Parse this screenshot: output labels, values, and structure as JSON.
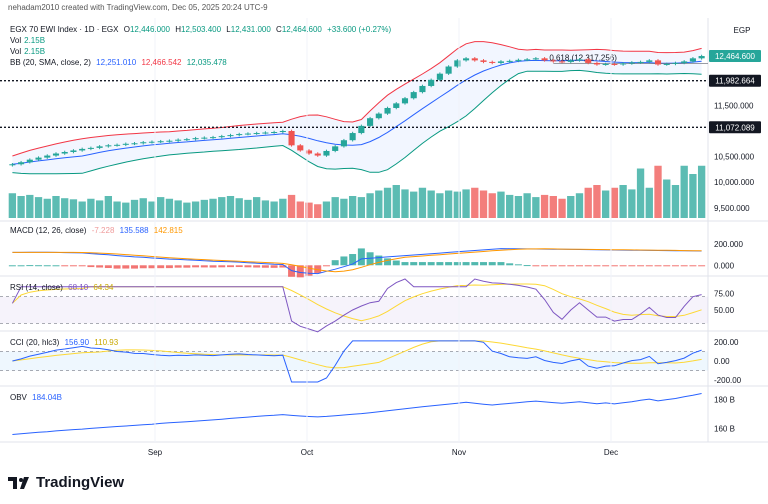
{
  "header": {
    "attribution": "nehadam2010 created with TradingView.com, Dec 05, 2025 20:24 UTC-9"
  },
  "currency": "EGP",
  "symbol": {
    "name": "EGX 70 EWI Index · 1D · EGX",
    "open_label": "O",
    "open": "12,446.000",
    "high_label": "H",
    "high": "12,503.400",
    "low_label": "L",
    "low": "12,431.000",
    "close_label": "C",
    "close": "12,464.600",
    "change": "+33.600 (+0.27%)"
  },
  "vol_lines": [
    {
      "label": "Vol",
      "value": "2.15B"
    },
    {
      "label": "Vol",
      "value": "2.15B"
    }
  ],
  "bb": {
    "label": "BB (20, SMA, close, 2)",
    "basis": "12,251.010",
    "upper": "12,466.542",
    "lower": "12,035.478"
  },
  "macd": {
    "label": "MACD (12, 26, close)",
    "hist": "-7.228",
    "macd": "135.588",
    "signal": "142.815"
  },
  "rsi": {
    "label": "RSI (14, close)",
    "rsi": "68.10",
    "ma": "64.34"
  },
  "cci": {
    "label": "CCI (20, hlc3)",
    "cci": "156.90",
    "ma": "110.93"
  },
  "obv": {
    "label": "OBV",
    "value": "184.04B"
  },
  "price_axis": {
    "ticks": [
      "11,500.000",
      "10,500.000",
      "10,000.000",
      "9,500.000"
    ],
    "current": "12,464.600",
    "level1": "11,982.664",
    "level2": "11,072.089",
    "fib": "0.618 (12,317.256)"
  },
  "macd_axis": [
    "200.000",
    "0.000"
  ],
  "rsi_axis": [
    "75.00",
    "50.00"
  ],
  "cci_axis": [
    "200.00",
    "0.00",
    "-200.00"
  ],
  "obv_axis": [
    "180 B",
    "160 B"
  ],
  "time_axis": [
    "Sep",
    "Oct",
    "Nov",
    "Dec"
  ],
  "footer": {
    "brand": "TradingView"
  },
  "colors": {
    "up": "#26a69a",
    "down": "#ef5350",
    "bb_basis": "#2962ff",
    "bb_upper": "#f23645",
    "bb_lower": "#089981",
    "macd": "#2962ff",
    "signal": "#ff9800",
    "rsi": "#7e57c2",
    "rsi_ma": "#fdd835",
    "cci": "#2962ff",
    "cci_ma": "#fdd835",
    "obv": "#2962ff"
  },
  "chart_data": {
    "type": "candlestick",
    "x_labels": [
      "Sep",
      "Oct",
      "Nov",
      "Dec"
    ],
    "close": [
      10350,
      10390,
      10440,
      10480,
      10520,
      10560,
      10590,
      10620,
      10650,
      10670,
      10700,
      10720,
      10730,
      10750,
      10760,
      10780,
      10790,
      10800,
      10810,
      10830,
      10840,
      10860,
      10870,
      10880,
      10900,
      10920,
      10940,
      10950,
      10960,
      10970,
      10980,
      11000,
      10720,
      10620,
      10560,
      10520,
      10610,
      10700,
      10820,
      10960,
      11100,
      11250,
      11340,
      11450,
      11540,
      11640,
      11760,
      11880,
      12000,
      12120,
      12260,
      12380,
      12420,
      12380,
      12350,
      12330,
      12360,
      12370,
      12390,
      12400,
      12420,
      12380,
      12360,
      12350,
      12380,
      12400,
      12330,
      12300,
      12310,
      12300,
      12320,
      12340,
      12350,
      12380,
      12300,
      12310,
      12330,
      12360,
      12420,
      12465
    ],
    "volume_rel": [
      0.45,
      0.4,
      0.42,
      0.38,
      0.35,
      0.4,
      0.36,
      0.34,
      0.3,
      0.35,
      0.32,
      0.4,
      0.3,
      0.28,
      0.33,
      0.36,
      0.3,
      0.38,
      0.35,
      0.32,
      0.28,
      0.3,
      0.33,
      0.35,
      0.38,
      0.4,
      0.36,
      0.33,
      0.38,
      0.32,
      0.3,
      0.35,
      0.42,
      0.3,
      0.28,
      0.25,
      0.3,
      0.38,
      0.35,
      0.4,
      0.38,
      0.45,
      0.5,
      0.55,
      0.6,
      0.52,
      0.48,
      0.55,
      0.5,
      0.45,
      0.5,
      0.48,
      0.52,
      0.55,
      0.5,
      0.45,
      0.48,
      0.42,
      0.4,
      0.45,
      0.38,
      0.42,
      0.4,
      0.35,
      0.4,
      0.45,
      0.55,
      0.6,
      0.5,
      0.55,
      0.6,
      0.52,
      0.9,
      0.55,
      0.95,
      0.7,
      0.6,
      0.95,
      0.8,
      0.95
    ]
  }
}
